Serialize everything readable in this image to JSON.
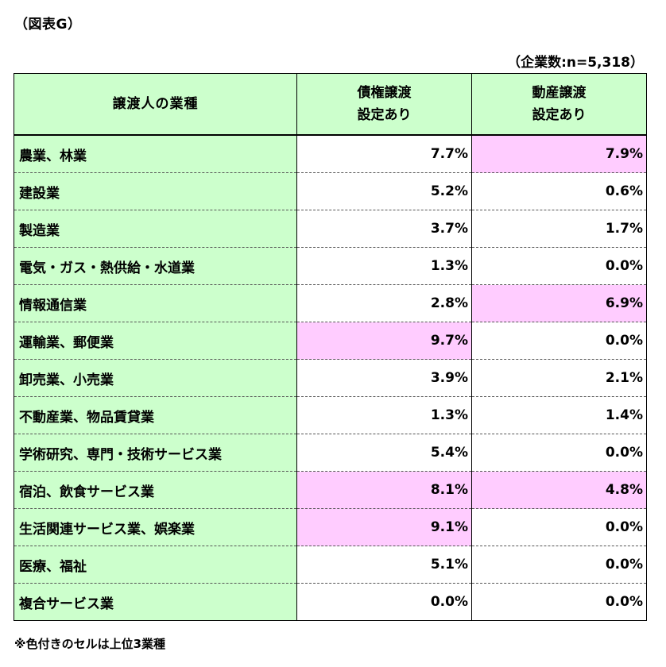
{
  "figure_label": "（図表G）",
  "sample_note": "（企業数:n=5,318）",
  "headers": {
    "industry": "譲渡人の業種",
    "claims_line1": "債権譲渡",
    "claims_line2": "設定あり",
    "movables_line1": "動産譲渡",
    "movables_line2": "設定あり"
  },
  "highlight_color": "#ffccff",
  "header_color": "#ccffcc",
  "rows": [
    {
      "industry": "農業、林業",
      "claims": "7.7%",
      "movables": "7.9%",
      "claims_hl": false,
      "movables_hl": true
    },
    {
      "industry": "建設業",
      "claims": "5.2%",
      "movables": "0.6%",
      "claims_hl": false,
      "movables_hl": false
    },
    {
      "industry": "製造業",
      "claims": "3.7%",
      "movables": "1.7%",
      "claims_hl": false,
      "movables_hl": false
    },
    {
      "industry": "電気・ガス・熱供給・水道業",
      "claims": "1.3%",
      "movables": "0.0%",
      "claims_hl": false,
      "movables_hl": false
    },
    {
      "industry": "情報通信業",
      "claims": "2.8%",
      "movables": "6.9%",
      "claims_hl": false,
      "movables_hl": true
    },
    {
      "industry": "運輸業、郵便業",
      "claims": "9.7%",
      "movables": "0.0%",
      "claims_hl": true,
      "movables_hl": false
    },
    {
      "industry": "卸売業、小売業",
      "claims": "3.9%",
      "movables": "2.1%",
      "claims_hl": false,
      "movables_hl": false
    },
    {
      "industry": "不動産業、物品賃貸業",
      "claims": "1.3%",
      "movables": "1.4%",
      "claims_hl": false,
      "movables_hl": false
    },
    {
      "industry": "学術研究、専門・技術サービス業",
      "claims": "5.4%",
      "movables": "0.0%",
      "claims_hl": false,
      "movables_hl": false
    },
    {
      "industry": "宿泊、飲食サービス業",
      "claims": "8.1%",
      "movables": "4.8%",
      "claims_hl": true,
      "movables_hl": true
    },
    {
      "industry": "生活関連サービス業、娯楽業",
      "claims": "9.1%",
      "movables": "0.0%",
      "claims_hl": true,
      "movables_hl": false
    },
    {
      "industry": "医療、福祉",
      "claims": "5.1%",
      "movables": "0.0%",
      "claims_hl": false,
      "movables_hl": false
    },
    {
      "industry": "複合サービス業",
      "claims": "0.0%",
      "movables": "0.0%",
      "claims_hl": false,
      "movables_hl": false
    }
  ],
  "footnote": "※色付きのセルは上位3業種"
}
